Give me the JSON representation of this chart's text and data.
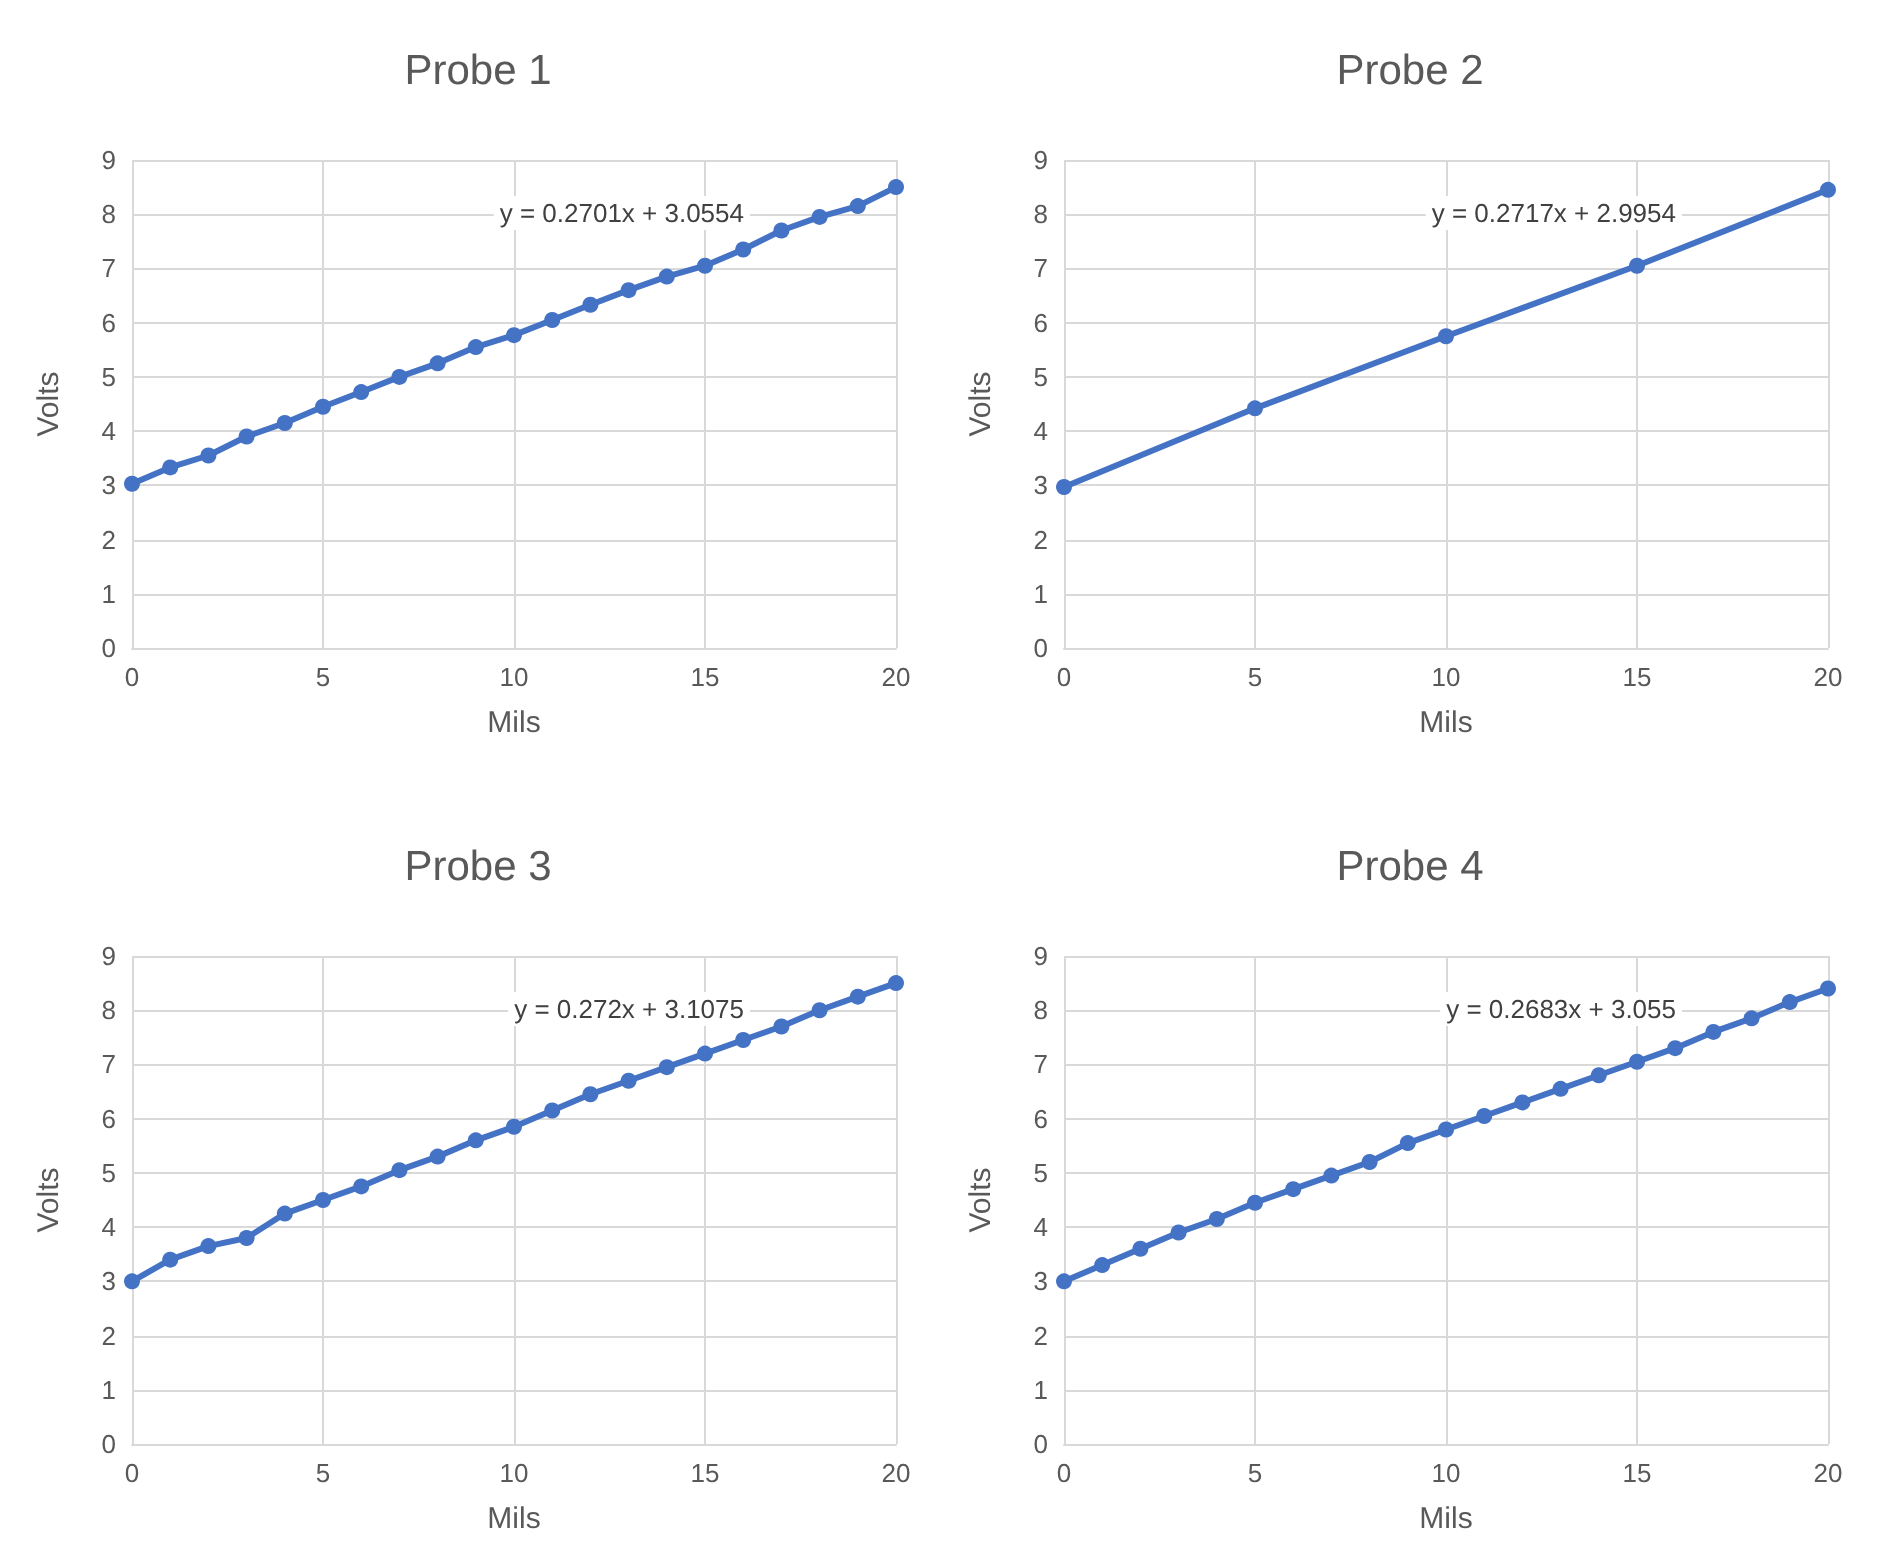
{
  "chart_data": [
    {
      "type": "line",
      "title": "Probe 1",
      "xlabel": "Mils",
      "ylabel": "Volts",
      "annotations": [
        "y = 0.2701x + 3.0554"
      ],
      "x": [
        0,
        1,
        2,
        3,
        4,
        5,
        6,
        7,
        8,
        9,
        10,
        11,
        12,
        13,
        14,
        15,
        16,
        17,
        18,
        19,
        20
      ],
      "series": [
        {
          "color": "#4472c4",
          "values": [
            3.03,
            3.33,
            3.55,
            3.9,
            4.15,
            4.45,
            4.72,
            5.0,
            5.25,
            5.55,
            5.77,
            6.05,
            6.33,
            6.6,
            6.85,
            7.05,
            7.35,
            7.7,
            7.95,
            8.15,
            8.5
          ]
        }
      ],
      "xlim": [
        0,
        20
      ],
      "xticks": [
        0,
        5,
        10,
        15,
        20
      ],
      "ylim": [
        0,
        9
      ],
      "yticks": [
        0,
        1,
        2,
        3,
        4,
        5,
        6,
        7,
        8,
        9
      ],
      "grid": true,
      "marker": "circle",
      "line_style": "solid"
    },
    {
      "type": "line",
      "title": "Probe 2",
      "xlabel": "Mils",
      "ylabel": "Volts",
      "annotations": [
        "y = 0.2717x + 2.9954"
      ],
      "x": [
        0,
        5,
        10,
        15,
        20
      ],
      "series": [
        {
          "color": "#4472c4",
          "values": [
            2.97,
            4.42,
            5.75,
            7.05,
            8.45
          ]
        }
      ],
      "xlim": [
        0,
        20
      ],
      "xticks": [
        0,
        5,
        10,
        15,
        20
      ],
      "ylim": [
        0,
        9
      ],
      "yticks": [
        0,
        1,
        2,
        3,
        4,
        5,
        6,
        7,
        8,
        9
      ],
      "grid": true,
      "marker": "circle",
      "line_style": "solid"
    },
    {
      "type": "line",
      "title": "Probe 3",
      "xlabel": "Mils",
      "ylabel": "Volts",
      "annotations": [
        "y = 0.272x + 3.1075"
      ],
      "x": [
        0,
        1,
        2,
        3,
        4,
        5,
        6,
        7,
        8,
        9,
        10,
        11,
        12,
        13,
        14,
        15,
        16,
        17,
        18,
        19,
        20
      ],
      "series": [
        {
          "color": "#4472c4",
          "values": [
            3.0,
            3.4,
            3.65,
            3.8,
            4.25,
            4.5,
            4.75,
            5.05,
            5.3,
            5.6,
            5.85,
            6.15,
            6.45,
            6.7,
            6.95,
            7.2,
            7.45,
            7.7,
            8.0,
            8.25,
            8.5
          ]
        }
      ],
      "xlim": [
        0,
        20
      ],
      "xticks": [
        0,
        5,
        10,
        15,
        20
      ],
      "ylim": [
        0,
        9
      ],
      "yticks": [
        0,
        1,
        2,
        3,
        4,
        5,
        6,
        7,
        8,
        9
      ],
      "grid": true,
      "marker": "circle",
      "line_style": "solid"
    },
    {
      "type": "line",
      "title": "Probe 4",
      "xlabel": "Mils",
      "ylabel": "Volts",
      "annotations": [
        "y = 0.2683x + 3.055"
      ],
      "x": [
        0,
        1,
        2,
        3,
        4,
        5,
        6,
        7,
        8,
        9,
        10,
        11,
        12,
        13,
        14,
        15,
        16,
        17,
        18,
        19,
        20
      ],
      "series": [
        {
          "color": "#4472c4",
          "values": [
            3.0,
            3.3,
            3.6,
            3.9,
            4.15,
            4.45,
            4.7,
            4.95,
            5.2,
            5.55,
            5.8,
            6.05,
            6.3,
            6.55,
            6.8,
            7.05,
            7.3,
            7.6,
            7.85,
            8.15,
            8.4
          ]
        }
      ],
      "xlim": [
        0,
        20
      ],
      "xticks": [
        0,
        5,
        10,
        15,
        20
      ],
      "ylim": [
        0,
        9
      ],
      "yticks": [
        0,
        1,
        2,
        3,
        4,
        5,
        6,
        7,
        8,
        9
      ],
      "grid": true,
      "marker": "circle",
      "line_style": "solid"
    }
  ]
}
